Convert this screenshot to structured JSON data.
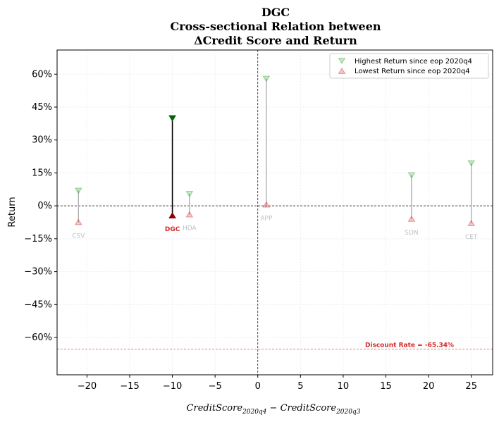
{
  "chart_data": {
    "type": "scatter",
    "title_lines": [
      "DGC",
      "Cross-sectional Relation between",
      "ΔCredit Score and Return"
    ],
    "xlabel_main": "CreditScore",
    "xlabel_sub1": "2020q4",
    "xlabel_minus": " − CreditScore",
    "xlabel_sub2": "2020q3",
    "ylabel": "Return",
    "xlim": [
      -23.5,
      27.5
    ],
    "ylim": [
      -77,
      71
    ],
    "xticks": [
      -20,
      -15,
      -10,
      -5,
      0,
      5,
      10,
      15,
      20,
      25
    ],
    "xtick_labels": [
      "−20",
      "−15",
      "−10",
      "−5",
      "0",
      "5",
      "10",
      "15",
      "20",
      "25"
    ],
    "yticks": [
      -60,
      -45,
      -30,
      -15,
      0,
      15,
      30,
      45,
      60
    ],
    "ytick_labels": [
      "−60%",
      "−45%",
      "−30%",
      "−15%",
      "0%",
      "15%",
      "30%",
      "45%",
      "60%"
    ],
    "highlight": "DGC",
    "points": [
      {
        "label": "CSV",
        "x": -21,
        "high": 7,
        "low": -7.5
      },
      {
        "label": "DGC",
        "x": -10,
        "high": 40,
        "low": -4.5
      },
      {
        "label": "HDA",
        "x": -8,
        "high": 5.5,
        "low": -4
      },
      {
        "label": "APP",
        "x": 1,
        "high": 58,
        "low": 0.5
      },
      {
        "label": "SDN",
        "x": 18,
        "high": 14,
        "low": -6
      },
      {
        "label": "CET",
        "x": 25,
        "high": 19.5,
        "low": -8
      }
    ],
    "legend": {
      "position": "top-right",
      "entries": [
        "Highest Return since eop 2020q4",
        "Lowest Return since eop 2020q4"
      ]
    },
    "discount_rate": {
      "value": -65.34,
      "label": "Discount Rate = -65.34%"
    },
    "colors": {
      "high": "#2ca02c",
      "low": "#d62728",
      "high_focus": "#006400",
      "low_focus": "#8b0000",
      "faded_line": "#b0b0b0",
      "focus_line": "#000000"
    }
  }
}
